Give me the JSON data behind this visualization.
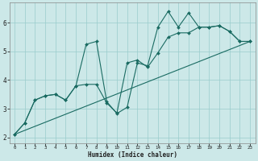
{
  "xlabel": "Humidex (Indice chaleur)",
  "bg_color": "#cce8e8",
  "line_color": "#1a6b62",
  "grid_color": "#99cccc",
  "line1_x": [
    0,
    1,
    2,
    3,
    4,
    5,
    6,
    7,
    8,
    9,
    10,
    11,
    12,
    13,
    14,
    15,
    16,
    17,
    18,
    19,
    20,
    21,
    22,
    23
  ],
  "line1_y": [
    2.1,
    2.5,
    3.3,
    3.45,
    3.5,
    3.3,
    3.8,
    5.25,
    5.35,
    3.25,
    2.83,
    3.05,
    4.6,
    4.5,
    5.85,
    6.4,
    5.85,
    6.35,
    5.85,
    5.85,
    5.9,
    5.7,
    5.35,
    5.35
  ],
  "line2_x": [
    0,
    1,
    2,
    3,
    4,
    5,
    6,
    7,
    8,
    9,
    10,
    11,
    12,
    13,
    14,
    15,
    16,
    17,
    18,
    19,
    20,
    21,
    22,
    23
  ],
  "line2_y": [
    2.1,
    2.5,
    3.3,
    3.45,
    3.5,
    3.3,
    3.8,
    3.85,
    3.85,
    3.2,
    2.85,
    4.6,
    4.7,
    4.45,
    4.95,
    5.5,
    5.65,
    5.65,
    5.85,
    5.85,
    5.9,
    5.7,
    5.35,
    5.35
  ],
  "line3_x": [
    0,
    23
  ],
  "line3_y": [
    2.1,
    5.35
  ],
  "ylim": [
    1.8,
    6.7
  ],
  "xlim": [
    -0.5,
    23.5
  ],
  "yticks": [
    2,
    3,
    4,
    5,
    6
  ],
  "xticks": [
    0,
    1,
    2,
    3,
    4,
    5,
    6,
    7,
    8,
    9,
    10,
    11,
    12,
    13,
    14,
    15,
    16,
    17,
    18,
    19,
    20,
    21,
    22,
    23
  ]
}
